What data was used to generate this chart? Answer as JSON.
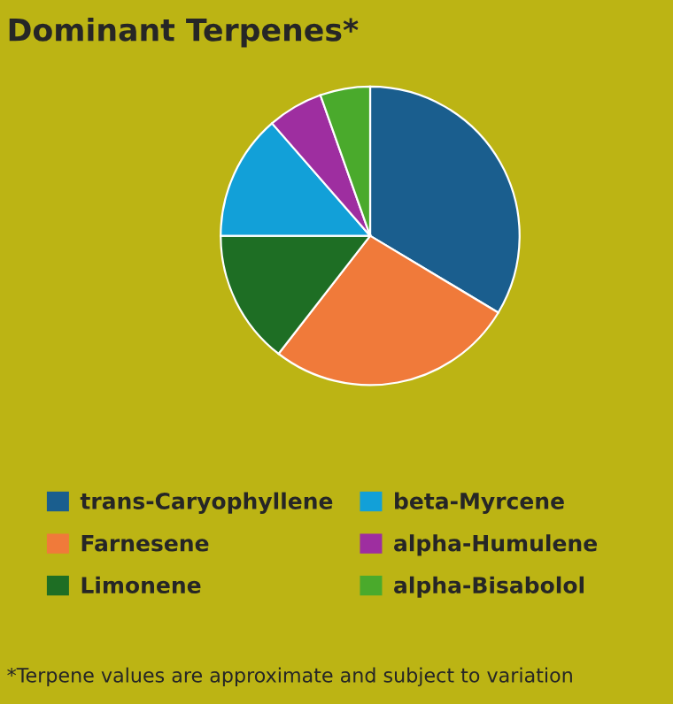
{
  "chart_data": {
    "type": "pie",
    "title": "Dominant Terpenes*",
    "categories": [
      "trans-Caryophyllene",
      "Farnesene",
      "Limonene",
      "beta-Myrcene",
      "alpha-Humulene",
      "alpha-Bisabolol"
    ],
    "values": [
      33.6,
      26.9,
      14.5,
      13.6,
      6.0,
      5.4
    ],
    "colors": [
      "#1a5e8e",
      "#f07a3a",
      "#1e6e24",
      "#12a0d8",
      "#9e2ea0",
      "#4aaa2c"
    ],
    "legend": "bottom",
    "annotations": [
      "*Terpene values are approximate and subject to variation"
    ]
  }
}
